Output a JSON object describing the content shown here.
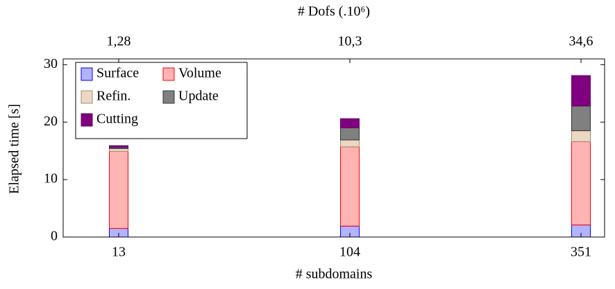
{
  "chart_data": {
    "type": "stacked_bar",
    "xlabel": "# subdomains",
    "x2label": "# Dofs (.10⁶)",
    "ylabel": "Elapsed time [s]",
    "categories": [
      "13",
      "104",
      "351"
    ],
    "x2categories": [
      "1,28",
      "10,3",
      "34,6"
    ],
    "series": [
      {
        "name": "Surface",
        "color": "#b3b3ff",
        "stroke": "#0000ff",
        "values": [
          1.5,
          1.9,
          2.1
        ]
      },
      {
        "name": "Volume",
        "color": "#ffb3b3",
        "stroke": "#ff0000",
        "values": [
          13.4,
          13.8,
          14.5
        ]
      },
      {
        "name": "Refin.",
        "color": "#ecd7c3",
        "stroke": "#a08c78",
        "values": [
          0.5,
          1.2,
          1.9
        ]
      },
      {
        "name": "Update",
        "color": "#808080",
        "stroke": "#333333",
        "values": [
          0.2,
          2.1,
          4.3
        ]
      },
      {
        "name": "Cutting",
        "color": "#800080",
        "stroke": "#600060",
        "values": [
          0.3,
          1.6,
          5.3
        ]
      }
    ],
    "ylim": [
      0,
      31
    ],
    "yticks": [
      0,
      10,
      20,
      30
    ],
    "legend": "upper left"
  }
}
